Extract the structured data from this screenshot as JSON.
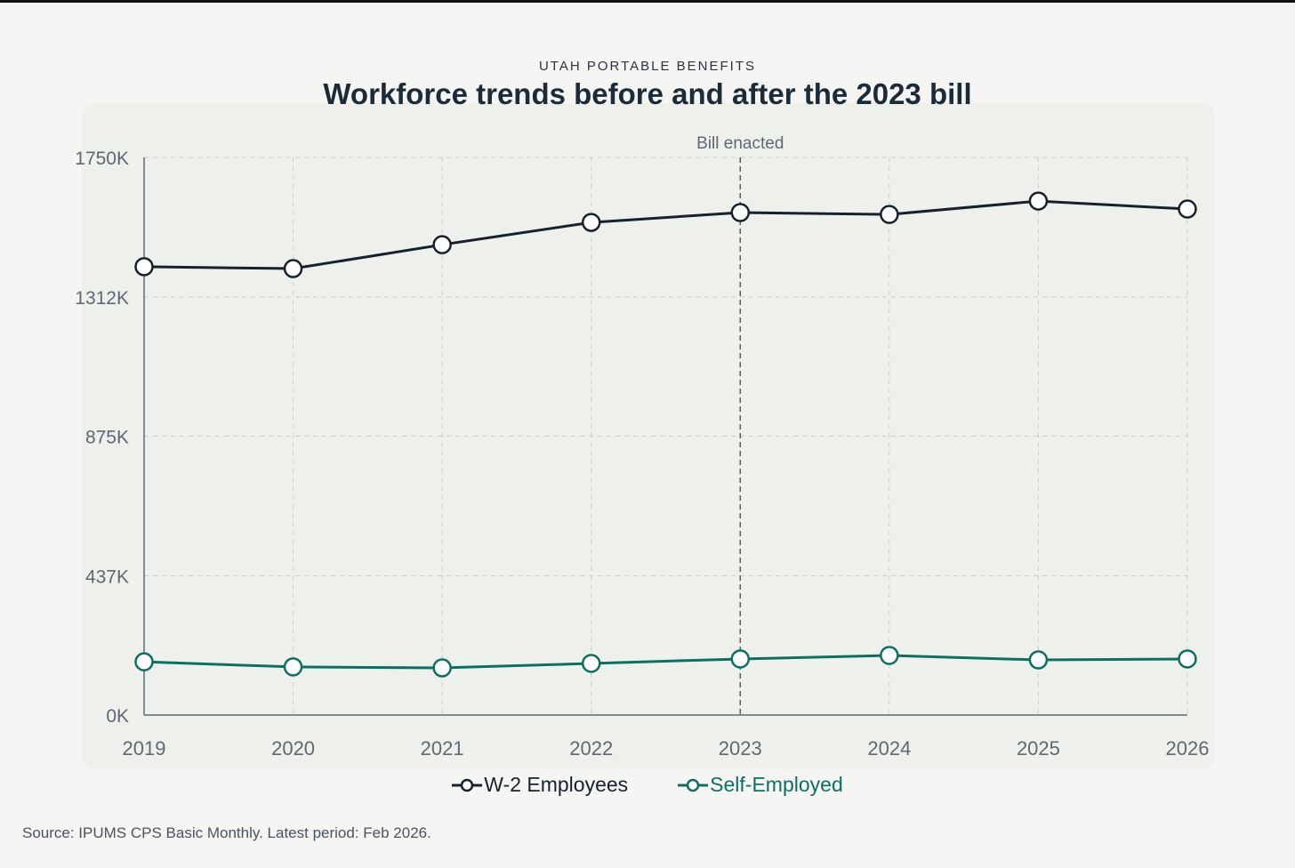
{
  "chart_data": {
    "type": "line",
    "eyebrow": "UTAH PORTABLE BENEFITS",
    "title": "Workforce trends before and after the 2023 bill",
    "x": [
      "2019",
      "2020",
      "2021",
      "2022",
      "2023",
      "2024",
      "2025",
      "2026"
    ],
    "ylim": [
      0,
      1750
    ],
    "yticks": [
      0,
      437,
      875,
      1312,
      1750
    ],
    "ytick_labels": [
      "0K",
      "437K",
      "875K",
      "1312K",
      "1750K"
    ],
    "grid": true,
    "series": [
      {
        "name": "W-2 Employees",
        "color": "#17212e",
        "values": [
          1407,
          1401,
          1476,
          1546,
          1577,
          1571,
          1613,
          1588
        ]
      },
      {
        "name": "Self-Employed",
        "color": "#0f6e62",
        "values": [
          167,
          151,
          148,
          162,
          176,
          187,
          173,
          176
        ]
      }
    ],
    "annotation": {
      "x": "2023",
      "label": "Bill enacted"
    },
    "legend_position": "bottom-center",
    "source": "Source: IPUMS CPS Basic Monthly. Latest period: Feb 2026."
  }
}
